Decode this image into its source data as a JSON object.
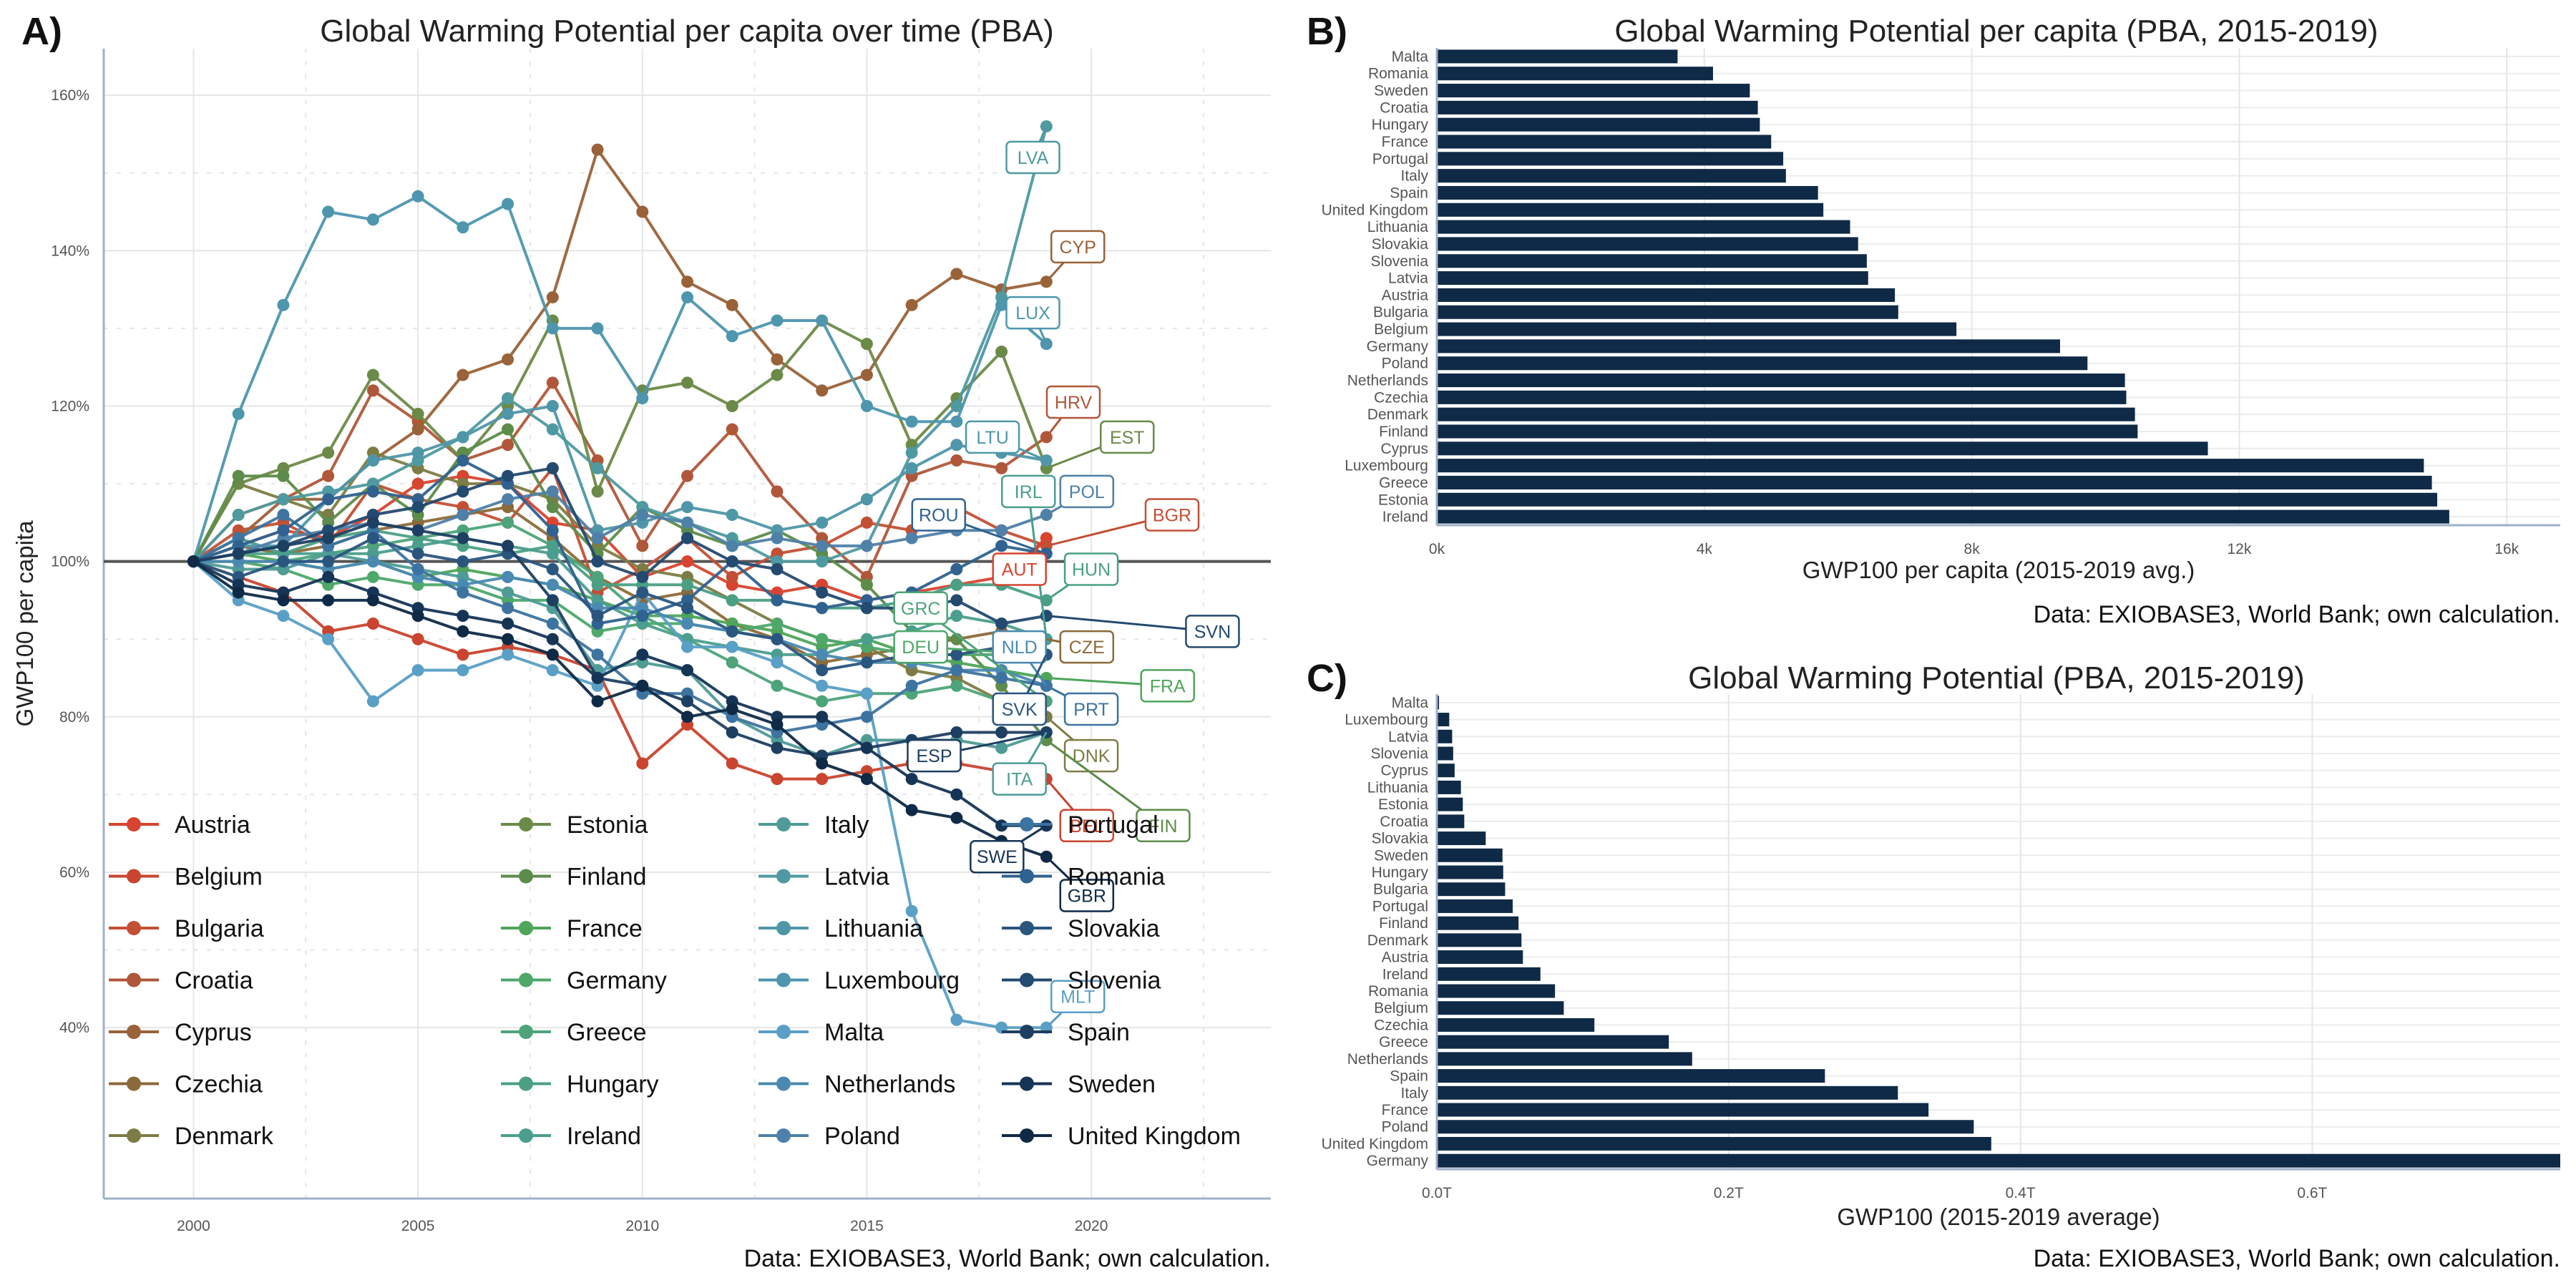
{
  "colors": {
    "Austria": "#d7442f",
    "Belgium": "#c9452f",
    "Bulgaria": "#c35035",
    "Croatia": "#b0573a",
    "Cyprus": "#9a6239",
    "Czechia": "#8c6a3a",
    "Denmark": "#7d7c45",
    "Estonia": "#6b8a48",
    "Finland": "#5d8c4a",
    "France": "#4fa55a",
    "Germany": "#4ea86a",
    "Greece": "#4da47a",
    "Hungary": "#4b9f85",
    "Ireland": "#4b9e8e",
    "Italy": "#4f9b96",
    "Latvia": "#4f9aa0",
    "Lithuania": "#4f97a8",
    "Luxembourg": "#4e96ae",
    "Malta": "#5a9fc6",
    "Netherlands": "#4a89b2",
    "Poland": "#4f80a8",
    "Portugal": "#3d73a0",
    "Romania": "#2f6290",
    "Slovakia": "#2a557f",
    "Slovenia": "#234a70",
    "Spain": "#1d3f62",
    "Sweden": "#163556",
    "United Kingdom": "#0f2a46",
    "bar": "#0f2a46",
    "ref": "#555555",
    "axis": "#9fb0c8"
  },
  "chart_data": [
    {
      "panel": "A)",
      "type": "line",
      "title": "Global Warming Potential per capita over time (PBA)",
      "ylabel": "GWP100 per capita",
      "xlabel": "",
      "xlim": [
        1998,
        2024
      ],
      "ylim": [
        18,
        166
      ],
      "xticks": [
        2000,
        2005,
        2010,
        2015,
        2020
      ],
      "yticks": [
        40,
        60,
        80,
        100,
        120,
        140,
        160
      ],
      "ytick_labels": [
        "40%",
        "60%",
        "80%",
        "100%",
        "120%",
        "140%",
        "160%"
      ],
      "reference_line": 100,
      "grid": true,
      "legend": "bottom-left",
      "source": "Data: EXIOBASE3, World Bank; own calculation.",
      "x": [
        2000,
        2001,
        2002,
        2003,
        2004,
        2005,
        2006,
        2007,
        2008,
        2009,
        2010,
        2011,
        2012,
        2013,
        2014,
        2015,
        2016,
        2017,
        2018,
        2019
      ],
      "series": [
        {
          "name": "Austria",
          "code": "AUT",
          "values": [
            100,
            102,
            104,
            103,
            106,
            110,
            111,
            110,
            105,
            104,
            98,
            100,
            97,
            96,
            97,
            95,
            96,
            97,
            98,
            103
          ]
        },
        {
          "name": "Belgium",
          "code": "BEL",
          "values": [
            100,
            98,
            96,
            91,
            92,
            90,
            88,
            89,
            88,
            86,
            74,
            79,
            74,
            72,
            72,
            73,
            74,
            74,
            73,
            72
          ]
        },
        {
          "name": "Bulgaria",
          "code": "BGR",
          "values": [
            100,
            104,
            105,
            102,
            110,
            108,
            107,
            105,
            112,
            96,
            99,
            103,
            98,
            101,
            102,
            105,
            104,
            107,
            104,
            102
          ]
        },
        {
          "name": "Croatia",
          "code": "HRV",
          "values": [
            100,
            106,
            108,
            111,
            122,
            118,
            113,
            115,
            123,
            113,
            102,
            111,
            117,
            109,
            103,
            98,
            111,
            113,
            112,
            116
          ]
        },
        {
          "name": "Cyprus",
          "code": "CYP",
          "values": [
            100,
            103,
            108,
            108,
            113,
            117,
            124,
            126,
            134,
            153,
            145,
            136,
            133,
            126,
            122,
            124,
            133,
            137,
            135,
            136
          ]
        },
        {
          "name": "Czechia",
          "code": "CZE",
          "values": [
            100,
            102,
            101,
            102,
            104,
            105,
            106,
            107,
            103,
            98,
            95,
            96,
            92,
            90,
            87,
            88,
            89,
            90,
            91,
            90
          ]
        },
        {
          "name": "Denmark",
          "code": "DNK",
          "values": [
            100,
            110,
            108,
            106,
            114,
            112,
            110,
            110,
            108,
            102,
            99,
            98,
            95,
            92,
            90,
            89,
            86,
            85,
            82,
            80
          ]
        },
        {
          "name": "Estonia",
          "code": "EST",
          "values": [
            100,
            110,
            112,
            114,
            124,
            119,
            113,
            120,
            131,
            109,
            122,
            123,
            120,
            124,
            131,
            128,
            115,
            121,
            127,
            112
          ]
        },
        {
          "name": "Finland",
          "code": "FIN",
          "values": [
            100,
            111,
            111,
            105,
            110,
            106,
            114,
            117,
            107,
            101,
            107,
            104,
            102,
            104,
            101,
            97,
            91,
            90,
            84,
            77
          ]
        },
        {
          "name": "France",
          "code": "FRA",
          "values": [
            100,
            101,
            100,
            99,
            100,
            98,
            99,
            98,
            97,
            95,
            93,
            93,
            92,
            91,
            89,
            90,
            88,
            87,
            86,
            85
          ]
        },
        {
          "name": "Germany",
          "code": "DEU",
          "values": [
            100,
            100,
            99,
            97,
            98,
            97,
            97,
            95,
            95,
            91,
            92,
            92,
            91,
            92,
            90,
            89,
            88,
            88,
            88,
            88
          ]
        },
        {
          "name": "Greece",
          "code": "GRC",
          "values": [
            100,
            100,
            100,
            101,
            102,
            103,
            104,
            105,
            102,
            98,
            93,
            90,
            87,
            84,
            82,
            83,
            83,
            84,
            82,
            82
          ]
        },
        {
          "name": "Hungary",
          "code": "HUN",
          "values": [
            100,
            101,
            101,
            103,
            104,
            103,
            102,
            101,
            102,
            97,
            97,
            97,
            95,
            95,
            94,
            94,
            95,
            97,
            97,
            95
          ]
        },
        {
          "name": "Ireland",
          "code": "IRL",
          "values": [
            100,
            103,
            101,
            101,
            101,
            102,
            103,
            102,
            101,
            95,
            92,
            90,
            89,
            88,
            88,
            90,
            91,
            93,
            92,
            90
          ]
        },
        {
          "name": "Italy",
          "code": "ITA",
          "values": [
            100,
            99,
            99,
            101,
            100,
            99,
            98,
            96,
            94,
            86,
            87,
            86,
            80,
            77,
            75,
            77,
            77,
            77,
            76,
            78
          ]
        },
        {
          "name": "Latvia",
          "code": "LVA",
          "values": [
            100,
            106,
            108,
            109,
            110,
            113,
            116,
            121,
            117,
            112,
            107,
            105,
            103,
            100,
            100,
            102,
            114,
            120,
            134,
            156
          ]
        },
        {
          "name": "Lithuania",
          "code": "LTU",
          "values": [
            100,
            102,
            102,
            108,
            113,
            114,
            116,
            119,
            120,
            104,
            105,
            107,
            106,
            104,
            105,
            108,
            112,
            115,
            114,
            113
          ]
        },
        {
          "name": "Luxembourg",
          "code": "LUX",
          "values": [
            100,
            119,
            133,
            145,
            144,
            147,
            143,
            146,
            130,
            130,
            121,
            134,
            129,
            131,
            131,
            120,
            118,
            118,
            133,
            128
          ]
        },
        {
          "name": "Malta",
          "code": "MLT",
          "values": [
            100,
            95,
            93,
            90,
            82,
            86,
            86,
            88,
            86,
            84,
            96,
            89,
            89,
            87,
            84,
            83,
            55,
            41,
            40,
            40
          ]
        },
        {
          "name": "Netherlands",
          "code": "NLD",
          "values": [
            100,
            100,
            100,
            99,
            100,
            98,
            97,
            98,
            97,
            94,
            94,
            92,
            91,
            90,
            88,
            87,
            87,
            86,
            86,
            84
          ]
        },
        {
          "name": "Poland",
          "code": "POL",
          "values": [
            100,
            101,
            103,
            104,
            105,
            104,
            106,
            108,
            109,
            103,
            106,
            105,
            102,
            103,
            102,
            102,
            103,
            104,
            104,
            106
          ]
        },
        {
          "name": "Portugal",
          "code": "PRT",
          "values": [
            100,
            103,
            106,
            102,
            104,
            99,
            96,
            94,
            92,
            88,
            83,
            83,
            80,
            78,
            79,
            80,
            84,
            86,
            85,
            84
          ]
        },
        {
          "name": "Romania",
          "code": "ROU",
          "values": [
            100,
            102,
            104,
            108,
            109,
            108,
            113,
            110,
            104,
            92,
            93,
            95,
            100,
            95,
            94,
            95,
            96,
            99,
            102,
            101
          ]
        },
        {
          "name": "Slovakia",
          "code": "SVK",
          "values": [
            100,
            98,
            100,
            100,
            103,
            101,
            100,
            101,
            99,
            93,
            96,
            94,
            91,
            90,
            86,
            87,
            88,
            88,
            89,
            88
          ]
        },
        {
          "name": "Slovenia",
          "code": "SVN",
          "values": [
            100,
            101,
            102,
            104,
            106,
            107,
            109,
            111,
            112,
            100,
            98,
            103,
            100,
            99,
            96,
            94,
            94,
            95,
            92,
            93
          ]
        },
        {
          "name": "Spain",
          "code": "ESP",
          "values": [
            100,
            101,
            102,
            103,
            105,
            104,
            103,
            102,
            95,
            85,
            84,
            82,
            78,
            76,
            75,
            76,
            77,
            78,
            78,
            78
          ]
        },
        {
          "name": "Sweden",
          "code": "SWE",
          "values": [
            100,
            97,
            96,
            98,
            96,
            94,
            93,
            92,
            90,
            85,
            88,
            86,
            82,
            80,
            80,
            76,
            72,
            70,
            66,
            66
          ]
        },
        {
          "name": "United Kingdom",
          "code": "GBR",
          "values": [
            100,
            96,
            95,
            95,
            95,
            93,
            91,
            90,
            88,
            82,
            84,
            80,
            81,
            79,
            74,
            72,
            68,
            67,
            64,
            62
          ]
        }
      ],
      "label_boxes": [
        {
          "code": "LVA",
          "x": 2018.7,
          "y": 152
        },
        {
          "code": "CYP",
          "x": 2019.7,
          "y": 140.5
        },
        {
          "code": "LUX",
          "x": 2018.7,
          "y": 132
        },
        {
          "code": "HRV",
          "x": 2019.6,
          "y": 120.5
        },
        {
          "code": "EST",
          "x": 2020.8,
          "y": 116
        },
        {
          "code": "LTU",
          "x": 2017.8,
          "y": 116
        },
        {
          "code": "IRL",
          "x": 2018.6,
          "y": 109
        },
        {
          "code": "POL",
          "x": 2019.9,
          "y": 109
        },
        {
          "code": "ROU",
          "x": 2016.6,
          "y": 106
        },
        {
          "code": "BGR",
          "x": 2021.8,
          "y": 106
        },
        {
          "code": "AUT",
          "x": 2018.4,
          "y": 99
        },
        {
          "code": "HUN",
          "x": 2020.0,
          "y": 99
        },
        {
          "code": "GRC",
          "x": 2016.2,
          "y": 94
        },
        {
          "code": "SVN",
          "x": 2022.7,
          "y": 91
        },
        {
          "code": "DEU",
          "x": 2016.2,
          "y": 89
        },
        {
          "code": "NLD",
          "x": 2018.4,
          "y": 89
        },
        {
          "code": "CZE",
          "x": 2019.9,
          "y": 89
        },
        {
          "code": "FRA",
          "x": 2021.7,
          "y": 84
        },
        {
          "code": "SVK",
          "x": 2018.4,
          "y": 81
        },
        {
          "code": "PRT",
          "x": 2020.0,
          "y": 81
        },
        {
          "code": "ESP",
          "x": 2016.5,
          "y": 75
        },
        {
          "code": "DNK",
          "x": 2020.0,
          "y": 75
        },
        {
          "code": "ITA",
          "x": 2018.4,
          "y": 72
        },
        {
          "code": "BEL",
          "x": 2019.9,
          "y": 66
        },
        {
          "code": "FIN",
          "x": 2021.6,
          "y": 66
        },
        {
          "code": "SWE",
          "x": 2017.9,
          "y": 62
        },
        {
          "code": "GBR",
          "x": 2019.9,
          "y": 57
        },
        {
          "code": "MLT",
          "x": 2019.7,
          "y": 44
        }
      ]
    },
    {
      "panel": "B)",
      "type": "bar",
      "orientation": "horizontal",
      "title": "Global Warming Potential per capita (PBA, 2015-2019)",
      "xlabel": "GWP100 per capita (2015-2019 avg.)",
      "xlim": [
        0,
        16800
      ],
      "xticks": [
        0,
        4000,
        8000,
        12000,
        16000
      ],
      "xtick_labels": [
        "0k",
        "4k",
        "8k",
        "12k",
        "16k"
      ],
      "grid": true,
      "source": "Data: EXIOBASE3, World Bank; own calculation.",
      "categories": [
        "Malta",
        "Romania",
        "Sweden",
        "Croatia",
        "Hungary",
        "France",
        "Portugal",
        "Italy",
        "Spain",
        "United Kingdom",
        "Lithuania",
        "Slovakia",
        "Slovenia",
        "Latvia",
        "Austria",
        "Bulgaria",
        "Belgium",
        "Germany",
        "Poland",
        "Netherlands",
        "Czechia",
        "Denmark",
        "Finland",
        "Cyprus",
        "Luxembourg",
        "Greece",
        "Estonia",
        "Ireland"
      ],
      "values": [
        3600,
        4130,
        4680,
        4800,
        4830,
        5000,
        5180,
        5220,
        5700,
        5780,
        6180,
        6300,
        6430,
        6450,
        6850,
        6900,
        7770,
        9320,
        9730,
        10290,
        10310,
        10440,
        10480,
        11530,
        14760,
        14880,
        14960,
        15140
      ]
    },
    {
      "panel": "C)",
      "type": "bar",
      "orientation": "horizontal",
      "title": "Global Warming Potential (PBA, 2015-2019)",
      "xlabel": "GWP100 (2015-2019 average)",
      "xlim": [
        0,
        0.77
      ],
      "xticks": [
        0,
        0.2,
        0.4,
        0.6
      ],
      "xtick_labels": [
        "0.0T",
        "0.2T",
        "0.4T",
        "0.6T"
      ],
      "grid": true,
      "source": "Data: EXIOBASE3, World Bank; own calculation.",
      "categories": [
        "Malta",
        "Luxembourg",
        "Latvia",
        "Slovenia",
        "Cyprus",
        "Lithuania",
        "Estonia",
        "Croatia",
        "Slovakia",
        "Sweden",
        "Hungary",
        "Bulgaria",
        "Portugal",
        "Finland",
        "Denmark",
        "Austria",
        "Ireland",
        "Romania",
        "Belgium",
        "Czechia",
        "Greece",
        "Netherlands",
        "Spain",
        "Italy",
        "France",
        "Poland",
        "United Kingdom",
        "Germany"
      ],
      "values": [
        0.0015,
        0.0085,
        0.0105,
        0.0112,
        0.0122,
        0.0165,
        0.0178,
        0.0188,
        0.0335,
        0.045,
        0.0455,
        0.0468,
        0.052,
        0.056,
        0.058,
        0.059,
        0.071,
        0.081,
        0.087,
        0.108,
        0.159,
        0.175,
        0.266,
        0.316,
        0.337,
        0.368,
        0.38,
        0.77
      ]
    }
  ]
}
